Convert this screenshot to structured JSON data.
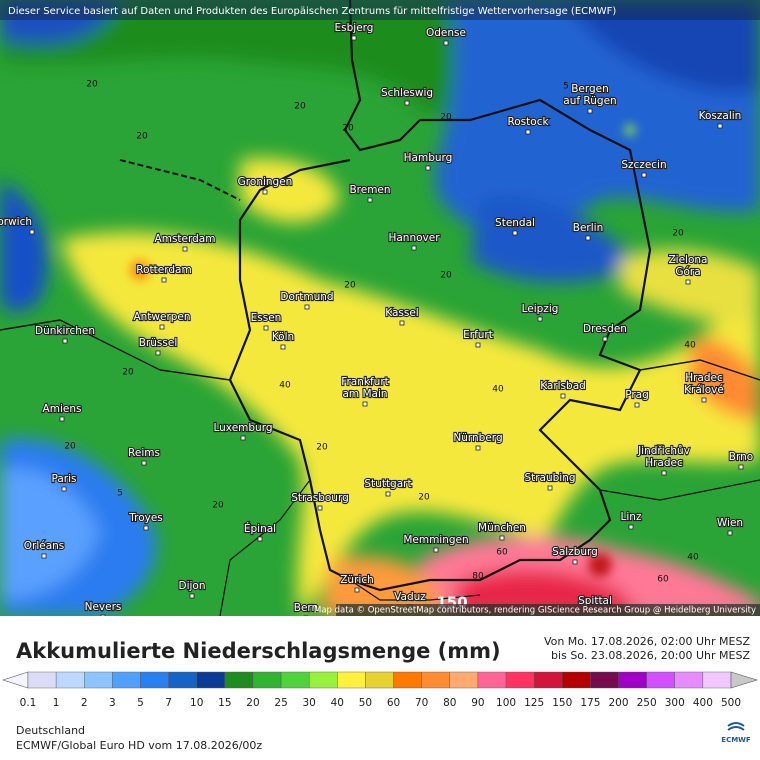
{
  "header": {
    "notice": "Dieser Service basiert auf Daten und Produkten des Europäischen Zentrums für mittelfristige Wettervorhersage (ECMWF)",
    "attribution": "Map data © OpenStreetMap contributors, rendering GIScience Research Group @ Heidelberg University"
  },
  "map": {
    "cities": [
      [
        "Esbjerg"
      ],
      [
        "Odense"
      ],
      [
        "Schleswig"
      ],
      [
        "Bergen",
        "auf Rügen"
      ],
      [
        "Koszalin"
      ],
      [
        "Rostock"
      ],
      [
        "Hamburg"
      ],
      [
        "Szczecin"
      ],
      [
        "Groningen"
      ],
      [
        "Bremen"
      ],
      [
        "Amsterdam"
      ],
      [
        "Stendal"
      ],
      [
        "Berlin"
      ],
      [
        "Hannover"
      ],
      [
        "Norwich"
      ],
      [
        "Zielona",
        "Góra"
      ],
      [
        "Rotterdam"
      ],
      [
        "Dortmund"
      ],
      [
        "Leipzig"
      ],
      [
        "Antwerpen"
      ],
      [
        "Essen"
      ],
      [
        "Kassel"
      ],
      [
        "Dresden"
      ],
      [
        "Dünkirchen"
      ],
      [
        "Erfurt"
      ],
      [
        "Köln"
      ],
      [
        "Brüssel"
      ],
      [
        "Frankfurt",
        "am Main"
      ],
      [
        "Karlsbad"
      ],
      [
        "Hradec",
        "Králové"
      ],
      [
        "Amiens"
      ],
      [
        "Prag"
      ],
      [
        "Luxemburg"
      ],
      [
        "Nürnberg"
      ],
      [
        "Jindřichův",
        "Hradec"
      ],
      [
        "Reims"
      ],
      [
        "Paris"
      ],
      [
        "Straubing"
      ],
      [
        "Stuttgart"
      ],
      [
        "Strasbourg"
      ],
      [
        "Troyes"
      ],
      [
        "Linz"
      ],
      [
        "München"
      ],
      [
        "Épinal"
      ],
      [
        "Memmingen"
      ],
      [
        "Orléans"
      ],
      [
        "Salzburg"
      ],
      [
        "Dijon"
      ],
      [
        "Zürich"
      ],
      [
        "Vaduz"
      ],
      [
        "Nevers"
      ],
      [
        "Bern"
      ],
      [
        "Spittal"
      ],
      [
        "Brno"
      ],
      [
        "Wien"
      ]
    ],
    "contour_labels": [
      20,
      20,
      20,
      20,
      20,
      5,
      20,
      20,
      20,
      40,
      40,
      20,
      20,
      20,
      5,
      20,
      40,
      40,
      20,
      60,
      60,
      80,
      150
    ]
  },
  "legend": {
    "title": "Akkumulierte Niederschlagsmenge (mm)",
    "period_from": "Von Mo. 17.08.2026, 02:00 Uhr MESZ",
    "period_to": "bis So. 23.08.2026, 20:00 Uhr MESZ",
    "ticks": [
      0.1,
      1,
      2,
      3,
      5,
      7,
      10,
      15,
      20,
      25,
      30,
      40,
      50,
      60,
      70,
      80,
      90,
      100,
      125,
      150,
      175,
      200,
      250,
      300,
      400,
      500
    ],
    "colors": [
      "#f4f4fc",
      "#dcdcf5",
      "#bcd8ff",
      "#8cc4ff",
      "#50a0ff",
      "#2880f0",
      "#1464c8",
      "#0a3c96",
      "#1e8c1e",
      "#32b432",
      "#50d23c",
      "#96f03c",
      "#fff03c",
      "#e6d232",
      "#ff7800",
      "#ff8c32",
      "#ffaa6e",
      "#ff6496",
      "#ff3264",
      "#d2143c",
      "#b40000",
      "#780a50",
      "#a000c8",
      "#d250ff",
      "#e68cff",
      "#f0c8ff",
      "#ffe6ff",
      "#c8c8c8"
    ]
  },
  "footer": {
    "region": "Deutschland",
    "model": "ECMWF/Global Euro HD vom  17.08.2026/00z",
    "logo": "ECMWF"
  }
}
